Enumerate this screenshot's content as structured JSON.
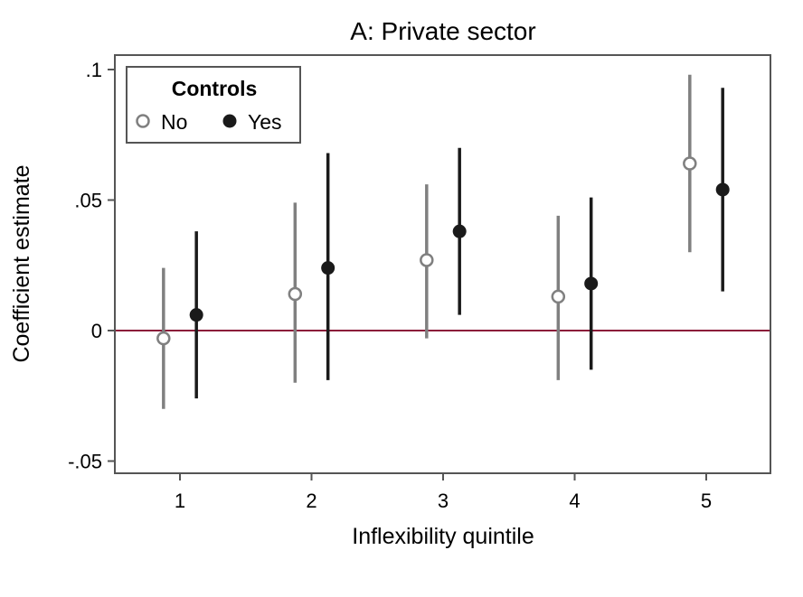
{
  "chart_data": {
    "type": "scatter",
    "title": "A: Private sector",
    "xlabel": "Inflexibility quintile",
    "ylabel": "Coefficient estimate",
    "categories": [
      "1",
      "2",
      "3",
      "4",
      "5"
    ],
    "yticks": [
      {
        "value": -0.05,
        "label": "-.05"
      },
      {
        "value": 0,
        "label": "0"
      },
      {
        "value": 0.05,
        "label": ".05"
      },
      {
        "value": 0.1,
        "label": ".1"
      }
    ],
    "ylim": [
      -0.055,
      0.103
    ],
    "reference_line": {
      "value": 0,
      "color": "#8b1a3a"
    },
    "legend": {
      "title": "Controls",
      "position": "top-left"
    },
    "series": [
      {
        "name": "No",
        "marker": "hollow-circle",
        "color": "#808080",
        "offset": -0.125,
        "points": [
          {
            "x": 1,
            "y": -0.003,
            "lo": -0.03,
            "hi": 0.024
          },
          {
            "x": 2,
            "y": 0.014,
            "lo": -0.02,
            "hi": 0.049
          },
          {
            "x": 3,
            "y": 0.027,
            "lo": -0.003,
            "hi": 0.056
          },
          {
            "x": 4,
            "y": 0.013,
            "lo": -0.019,
            "hi": 0.044
          },
          {
            "x": 5,
            "y": 0.064,
            "lo": 0.03,
            "hi": 0.098
          }
        ]
      },
      {
        "name": "Yes",
        "marker": "filled-circle",
        "color": "#1a1a1a",
        "offset": 0.125,
        "points": [
          {
            "x": 1,
            "y": 0.006,
            "lo": -0.026,
            "hi": 0.038
          },
          {
            "x": 2,
            "y": 0.024,
            "lo": -0.019,
            "hi": 0.068
          },
          {
            "x": 3,
            "y": 0.038,
            "lo": 0.006,
            "hi": 0.07
          },
          {
            "x": 4,
            "y": 0.018,
            "lo": -0.015,
            "hi": 0.051
          },
          {
            "x": 5,
            "y": 0.054,
            "lo": 0.015,
            "hi": 0.093
          }
        ]
      }
    ]
  }
}
